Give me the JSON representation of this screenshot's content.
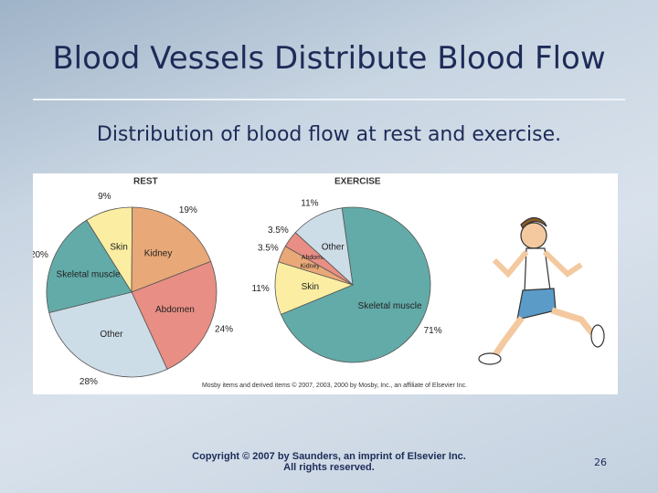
{
  "slide": {
    "title": "Blood Vessels Distribute Blood Flow",
    "subtitle": "Distribution of blood flow at rest and exercise.",
    "credit": "Mosby items and derived items © 2007, 2003, 2000 by Mosby, Inc., an affiliate of Elsevier Inc.",
    "copyright": "Copyright © 2007 by Saunders, an imprint of Elsevier Inc. All rights reserved.",
    "page_number": "26"
  },
  "chart_data": [
    {
      "type": "pie",
      "title": "REST",
      "categories": [
        "Skin",
        "Kidney",
        "Abdomen",
        "Other",
        "Skeletal muscle"
      ],
      "values": [
        9,
        19,
        24,
        28,
        20
      ],
      "value_labels": [
        "9%",
        "19%",
        "24%",
        "28%",
        "20%"
      ],
      "colors": [
        "#fbeea2",
        "#e9a877",
        "#e88e84",
        "#cddde8",
        "#62aba8"
      ]
    },
    {
      "type": "pie",
      "title": "EXERCISE",
      "categories": [
        "Skeletal muscle",
        "Skin",
        "Kidney",
        "Abdomen",
        "Other"
      ],
      "values": [
        71,
        11,
        3.5,
        3.5,
        11
      ],
      "value_labels": [
        "71%",
        "11%",
        "3.5%",
        "3.5%",
        "11%"
      ],
      "colors": [
        "#62aba8",
        "#fbeea2",
        "#e9a877",
        "#e88e84",
        "#cddde8"
      ]
    }
  ]
}
